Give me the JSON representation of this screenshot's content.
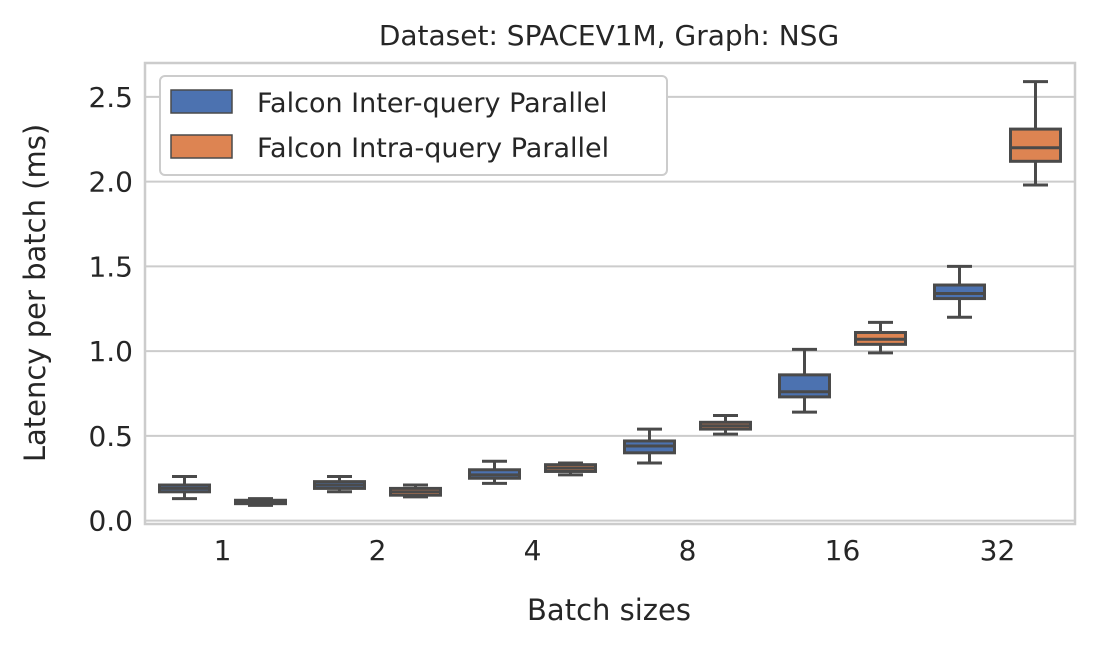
{
  "chart_data": {
    "type": "box",
    "title": "Dataset: SPACEV1M, Graph: NSG",
    "xlabel": "Batch sizes",
    "ylabel": "Latency per batch (ms)",
    "categories": [
      "1",
      "2",
      "4",
      "8",
      "16",
      "32"
    ],
    "ylim": [
      -0.02,
      2.7
    ],
    "yticks": [
      0.0,
      0.5,
      1.0,
      1.5,
      2.0,
      2.5
    ],
    "ytick_labels": [
      "0.0",
      "0.5",
      "1.0",
      "1.5",
      "2.0",
      "2.5"
    ],
    "grid": "horizontal",
    "legend_position": "top-left",
    "series": [
      {
        "name": "Falcon Inter-query Parallel",
        "color": "#4c72b0",
        "boxes": [
          {
            "min": 0.13,
            "q1": 0.17,
            "median": 0.19,
            "q3": 0.21,
            "max": 0.26
          },
          {
            "min": 0.17,
            "q1": 0.19,
            "median": 0.21,
            "q3": 0.23,
            "max": 0.26
          },
          {
            "min": 0.22,
            "q1": 0.25,
            "median": 0.27,
            "q3": 0.3,
            "max": 0.35
          },
          {
            "min": 0.34,
            "q1": 0.4,
            "median": 0.44,
            "q3": 0.47,
            "max": 0.54
          },
          {
            "min": 0.64,
            "q1": 0.73,
            "median": 0.76,
            "q3": 0.86,
            "max": 1.01
          },
          {
            "min": 1.2,
            "q1": 1.31,
            "median": 1.34,
            "q3": 1.39,
            "max": 1.5
          }
        ]
      },
      {
        "name": "Falcon Intra-query Parallel",
        "color": "#dd8452",
        "boxes": [
          {
            "min": 0.09,
            "q1": 0.1,
            "median": 0.11,
            "q3": 0.12,
            "max": 0.13
          },
          {
            "min": 0.14,
            "q1": 0.15,
            "median": 0.17,
            "q3": 0.19,
            "max": 0.21
          },
          {
            "min": 0.27,
            "q1": 0.29,
            "median": 0.31,
            "q3": 0.33,
            "max": 0.34
          },
          {
            "min": 0.51,
            "q1": 0.54,
            "median": 0.56,
            "q3": 0.58,
            "max": 0.62
          },
          {
            "min": 0.99,
            "q1": 1.04,
            "median": 1.07,
            "q3": 1.11,
            "max": 1.17
          },
          {
            "min": 1.98,
            "q1": 2.12,
            "median": 2.2,
            "q3": 2.31,
            "max": 2.59
          }
        ]
      }
    ]
  }
}
